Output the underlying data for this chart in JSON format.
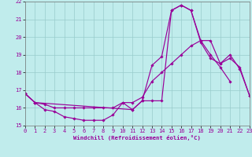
{
  "bg_color": "#c0ecec",
  "grid_color": "#98cccc",
  "line_color": "#990099",
  "xlabel": "Windchill (Refroidissement éolien,°C)",
  "xlim": [
    0,
    23
  ],
  "ylim": [
    15,
    22
  ],
  "xticks": [
    0,
    1,
    2,
    3,
    4,
    5,
    6,
    7,
    8,
    9,
    10,
    11,
    12,
    13,
    14,
    15,
    16,
    17,
    18,
    19,
    20,
    21,
    22,
    23
  ],
  "yticks": [
    15,
    16,
    17,
    18,
    19,
    20,
    21,
    22
  ],
  "curveA_x": [
    0,
    1,
    2,
    3,
    4,
    5,
    6,
    7,
    8,
    9,
    10,
    11,
    12,
    13,
    14,
    15,
    16,
    17,
    18,
    19,
    20,
    21
  ],
  "curveA_y": [
    16.8,
    16.3,
    15.9,
    15.8,
    15.5,
    15.4,
    15.3,
    15.3,
    15.3,
    15.6,
    16.3,
    15.9,
    16.4,
    16.4,
    16.4,
    21.5,
    21.8,
    21.5,
    19.8,
    19.0,
    18.3,
    17.5
  ],
  "curveB_x": [
    0,
    1,
    2,
    3,
    4,
    5,
    6,
    7,
    8,
    9,
    10,
    11,
    12,
    13,
    14,
    15,
    16,
    17,
    18,
    19,
    20,
    21,
    22,
    23
  ],
  "curveB_y": [
    16.8,
    16.3,
    16.2,
    16.0,
    16.0,
    16.0,
    16.0,
    16.0,
    16.0,
    16.0,
    16.3,
    16.3,
    16.6,
    17.5,
    18.0,
    18.5,
    19.0,
    19.5,
    19.8,
    19.8,
    18.5,
    18.8,
    18.3,
    16.7
  ],
  "curveC_x": [
    0,
    1,
    11,
    12,
    13,
    14,
    15,
    16,
    17,
    18,
    19,
    20,
    21,
    22,
    23
  ],
  "curveC_y": [
    16.8,
    16.3,
    15.9,
    16.4,
    18.4,
    18.9,
    21.5,
    21.8,
    21.5,
    19.7,
    18.8,
    18.5,
    19.0,
    18.2,
    16.7
  ]
}
